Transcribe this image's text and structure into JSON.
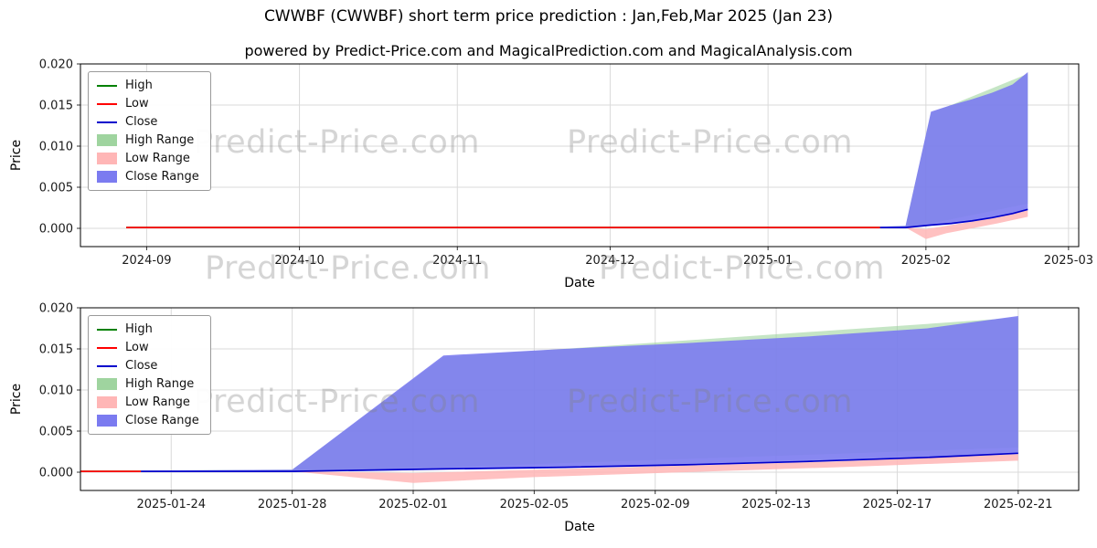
{
  "figure": {
    "title": "CWWBF (CWWBF) short term price prediction : Jan,Feb,Mar 2025 (Jan 23)",
    "subtitle": "powered by Predict-Price.com and MagicalPrediction.com and MagicalAnalysis.com"
  },
  "watermark": {
    "text": "Predict-Price.com"
  },
  "legend": {
    "position": "upper left",
    "entries": [
      {
        "label": "High",
        "color": "#008000",
        "swatch": "line"
      },
      {
        "label": "Low",
        "color": "#ff0000",
        "swatch": "line"
      },
      {
        "label": "Close",
        "color": "#0000cc",
        "swatch": "line"
      },
      {
        "label": "High Range",
        "color": "#9fd49f",
        "swatch": "patch"
      },
      {
        "label": "Low Range",
        "color": "#ffb6b6",
        "swatch": "patch"
      },
      {
        "label": "Close Range",
        "color": "#7b7bf0",
        "swatch": "patch"
      }
    ]
  },
  "chart_data": [
    {
      "type": "area",
      "xlabel": "Date",
      "ylabel": "Price",
      "grid": true,
      "x_range": [
        "2024-08-19",
        "2025-03-03"
      ],
      "ylim": [
        -0.002222,
        0.02
      ],
      "xticks": [
        {
          "date": "2024-09-01",
          "label": "2024-09"
        },
        {
          "date": "2024-10-01",
          "label": "2024-10"
        },
        {
          "date": "2024-11-01",
          "label": "2024-11"
        },
        {
          "date": "2024-12-01",
          "label": "2024-12"
        },
        {
          "date": "2025-01-01",
          "label": "2025-01"
        },
        {
          "date": "2025-02-01",
          "label": "2025-02"
        },
        {
          "date": "2025-03-01",
          "label": "2025-03"
        }
      ],
      "yticks": [
        {
          "value": 0.0,
          "label": "0.000"
        },
        {
          "value": 0.005,
          "label": "0.005"
        },
        {
          "value": 0.01,
          "label": "0.010"
        },
        {
          "value": 0.015,
          "label": "0.015"
        },
        {
          "value": 0.02,
          "label": "0.020"
        }
      ],
      "bands": [
        {
          "name": "High Range",
          "color": "#9fd49f",
          "opacity": 0.6,
          "top": [
            [
              "2025-01-23",
              0.0002
            ],
            [
              "2025-01-28",
              0.0003
            ],
            [
              "2025-02-02",
              0.014
            ],
            [
              "2025-02-21",
              0.0188
            ]
          ],
          "bottom": [
            [
              "2025-01-23",
              0.0001
            ],
            [
              "2025-01-28",
              0.0001
            ],
            [
              "2025-02-02",
              0.0006
            ],
            [
              "2025-02-21",
              0.003
            ]
          ]
        },
        {
          "name": "Low Range",
          "color": "#ffb6b6",
          "opacity": 0.85,
          "top": [
            [
              "2025-01-28",
              0.0001
            ],
            [
              "2025-02-01",
              -0.0001
            ],
            [
              "2025-02-05",
              0.0003
            ],
            [
              "2025-02-10",
              0.0008
            ],
            [
              "2025-02-15",
              0.0013
            ],
            [
              "2025-02-21",
              0.0022
            ]
          ],
          "bottom": [
            [
              "2025-01-28",
              0.0001
            ],
            [
              "2025-02-01",
              -0.0013
            ],
            [
              "2025-02-05",
              -0.0006
            ],
            [
              "2025-02-10",
              0.0
            ],
            [
              "2025-02-15",
              0.0006
            ],
            [
              "2025-02-21",
              0.0014
            ]
          ]
        },
        {
          "name": "Close Range",
          "color": "#7b7bf0",
          "opacity": 0.9,
          "top": [
            [
              "2025-01-23",
              0.0002
            ],
            [
              "2025-01-28",
              0.0003
            ],
            [
              "2025-02-02",
              0.0142
            ],
            [
              "2025-02-06",
              0.015
            ],
            [
              "2025-02-10",
              0.0157
            ],
            [
              "2025-02-14",
              0.0165
            ],
            [
              "2025-02-18",
              0.0175
            ],
            [
              "2025-02-21",
              0.019
            ]
          ],
          "bottom": [
            [
              "2025-01-23",
              0.0001
            ],
            [
              "2025-01-28",
              0.0001
            ],
            [
              "2025-02-02",
              0.0004
            ],
            [
              "2025-02-06",
              0.0006
            ],
            [
              "2025-02-10",
              0.0009
            ],
            [
              "2025-02-14",
              0.0013
            ],
            [
              "2025-02-18",
              0.0018
            ],
            [
              "2025-02-21",
              0.0023
            ]
          ]
        }
      ],
      "lines": [
        {
          "name": "High",
          "color": "#008000",
          "points": [
            [
              "2024-08-28",
              0.0001
            ],
            [
              "2025-01-23",
              0.0001
            ]
          ]
        },
        {
          "name": "Low",
          "color": "#ff0000",
          "points": [
            [
              "2024-08-28",
              0.0001
            ],
            [
              "2025-01-23",
              0.0001
            ]
          ]
        },
        {
          "name": "Close",
          "color": "#0000cc",
          "points": [
            [
              "2025-01-23",
              0.0001
            ],
            [
              "2025-01-28",
              0.0001
            ],
            [
              "2025-02-02",
              0.0004
            ],
            [
              "2025-02-06",
              0.0006
            ],
            [
              "2025-02-10",
              0.0009
            ],
            [
              "2025-02-14",
              0.0013
            ],
            [
              "2025-02-18",
              0.0018
            ],
            [
              "2025-02-21",
              0.0023
            ]
          ]
        }
      ]
    },
    {
      "type": "area",
      "xlabel": "Date",
      "ylabel": "Price",
      "grid": true,
      "x_range": [
        "2025-01-21",
        "2025-02-23"
      ],
      "ylim": [
        -0.002222,
        0.02
      ],
      "xticks": [
        {
          "date": "2025-01-24",
          "label": "2025-01-24"
        },
        {
          "date": "2025-01-28",
          "label": "2025-01-28"
        },
        {
          "date": "2025-02-01",
          "label": "2025-02-01"
        },
        {
          "date": "2025-02-05",
          "label": "2025-02-05"
        },
        {
          "date": "2025-02-09",
          "label": "2025-02-09"
        },
        {
          "date": "2025-02-13",
          "label": "2025-02-13"
        },
        {
          "date": "2025-02-17",
          "label": "2025-02-17"
        },
        {
          "date": "2025-02-21",
          "label": "2025-02-21"
        }
      ],
      "yticks": [
        {
          "value": 0.0,
          "label": "0.000"
        },
        {
          "value": 0.005,
          "label": "0.005"
        },
        {
          "value": 0.01,
          "label": "0.010"
        },
        {
          "value": 0.015,
          "label": "0.015"
        },
        {
          "value": 0.02,
          "label": "0.020"
        }
      ],
      "bands": [
        {
          "name": "High Range",
          "color": "#9fd49f",
          "opacity": 0.6,
          "top": [
            [
              "2025-01-23",
              0.0002
            ],
            [
              "2025-01-28",
              0.0003
            ],
            [
              "2025-02-02",
              0.014
            ],
            [
              "2025-02-21",
              0.0188
            ]
          ],
          "bottom": [
            [
              "2025-01-23",
              0.0001
            ],
            [
              "2025-01-28",
              0.0001
            ],
            [
              "2025-02-02",
              0.0006
            ],
            [
              "2025-02-21",
              0.003
            ]
          ]
        },
        {
          "name": "Low Range",
          "color": "#ffb6b6",
          "opacity": 0.85,
          "top": [
            [
              "2025-01-28",
              0.0001
            ],
            [
              "2025-02-01",
              -0.0001
            ],
            [
              "2025-02-05",
              0.0003
            ],
            [
              "2025-02-10",
              0.0008
            ],
            [
              "2025-02-15",
              0.0013
            ],
            [
              "2025-02-21",
              0.0022
            ]
          ],
          "bottom": [
            [
              "2025-01-28",
              0.0001
            ],
            [
              "2025-02-01",
              -0.0013
            ],
            [
              "2025-02-05",
              -0.0006
            ],
            [
              "2025-02-10",
              0.0
            ],
            [
              "2025-02-15",
              0.0006
            ],
            [
              "2025-02-21",
              0.0014
            ]
          ]
        },
        {
          "name": "Close Range",
          "color": "#7b7bf0",
          "opacity": 0.9,
          "top": [
            [
              "2025-01-23",
              0.0002
            ],
            [
              "2025-01-28",
              0.0003
            ],
            [
              "2025-02-02",
              0.0142
            ],
            [
              "2025-02-06",
              0.015
            ],
            [
              "2025-02-10",
              0.0157
            ],
            [
              "2025-02-14",
              0.0165
            ],
            [
              "2025-02-18",
              0.0175
            ],
            [
              "2025-02-21",
              0.019
            ]
          ],
          "bottom": [
            [
              "2025-01-23",
              0.0001
            ],
            [
              "2025-01-28",
              0.0001
            ],
            [
              "2025-02-02",
              0.0004
            ],
            [
              "2025-02-06",
              0.0006
            ],
            [
              "2025-02-10",
              0.0009
            ],
            [
              "2025-02-14",
              0.0013
            ],
            [
              "2025-02-18",
              0.0018
            ],
            [
              "2025-02-21",
              0.0023
            ]
          ]
        }
      ],
      "lines": [
        {
          "name": "High",
          "color": "#008000",
          "points": [
            [
              "2024-08-28",
              0.0001
            ],
            [
              "2025-01-23",
              0.0001
            ]
          ]
        },
        {
          "name": "Low",
          "color": "#ff0000",
          "points": [
            [
              "2024-08-28",
              0.0001
            ],
            [
              "2025-01-23",
              0.0001
            ]
          ]
        },
        {
          "name": "Close",
          "color": "#0000cc",
          "points": [
            [
              "2025-01-23",
              0.0001
            ],
            [
              "2025-01-28",
              0.0001
            ],
            [
              "2025-02-02",
              0.0004
            ],
            [
              "2025-02-06",
              0.0006
            ],
            [
              "2025-02-10",
              0.0009
            ],
            [
              "2025-02-14",
              0.0013
            ],
            [
              "2025-02-18",
              0.0018
            ],
            [
              "2025-02-21",
              0.0023
            ]
          ]
        }
      ]
    }
  ]
}
